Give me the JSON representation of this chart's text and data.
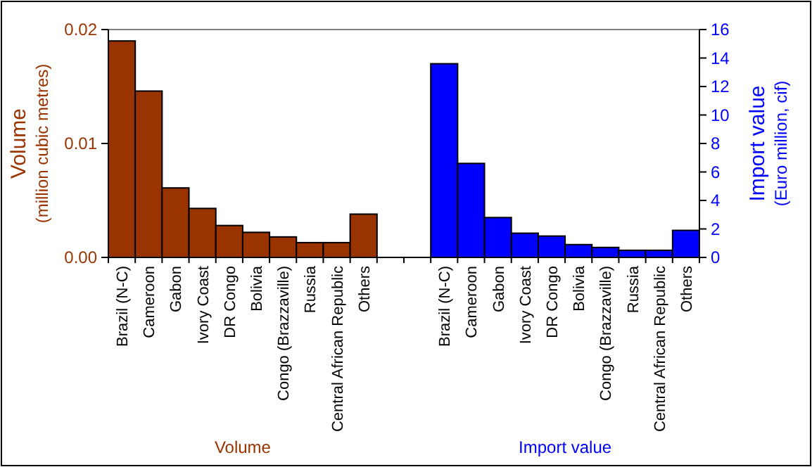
{
  "chart_data": {
    "type": "bar",
    "categories": [
      "Brazil (N-C)",
      "Cameroon",
      "Gabon",
      "Ivory Coast",
      "DR Congo",
      "Bolivia",
      "Congo (Brazzaville)",
      "Russia",
      "Central African Republic",
      "Others",
      null,
      null,
      "Brazil (N-C)",
      "Cameroon",
      "Gabon",
      "Ivory Coast",
      "DR Congo",
      "Bolivia",
      "Congo (Brazzaville)",
      "Russia",
      "Central African Republic",
      "Others"
    ],
    "ylabel": "Volume\n(million cubic metres)",
    "y2label": "Import value\n(Euro million, cif)",
    "ylim": [
      0,
      0.02
    ],
    "yticks": [
      {
        "value": 0,
        "label": "0.00"
      },
      0.01,
      0.02
    ],
    "y2lim": [
      0,
      16
    ],
    "y2ticks": [
      0,
      2,
      4,
      6,
      8,
      10,
      12,
      14,
      16
    ],
    "series": [
      {
        "name": "Volume",
        "color": "#993300",
        "values": [
          0.019,
          0.0146,
          0.0061,
          0.0043,
          0.0028,
          0.0022,
          0.0018,
          0.0013,
          0.0013,
          0.0038,
          null,
          null,
          null,
          null,
          null,
          null,
          null,
          null,
          null,
          null,
          null,
          null
        ]
      },
      {
        "name": "Import value",
        "color": "#0000ff",
        "axis": "y2",
        "values": [
          null,
          null,
          null,
          null,
          null,
          null,
          null,
          null,
          null,
          null,
          null,
          null,
          13.6,
          6.6,
          2.8,
          1.7,
          1.5,
          0.9,
          0.7,
          0.5,
          0.5,
          1.9
        ]
      }
    ]
  }
}
